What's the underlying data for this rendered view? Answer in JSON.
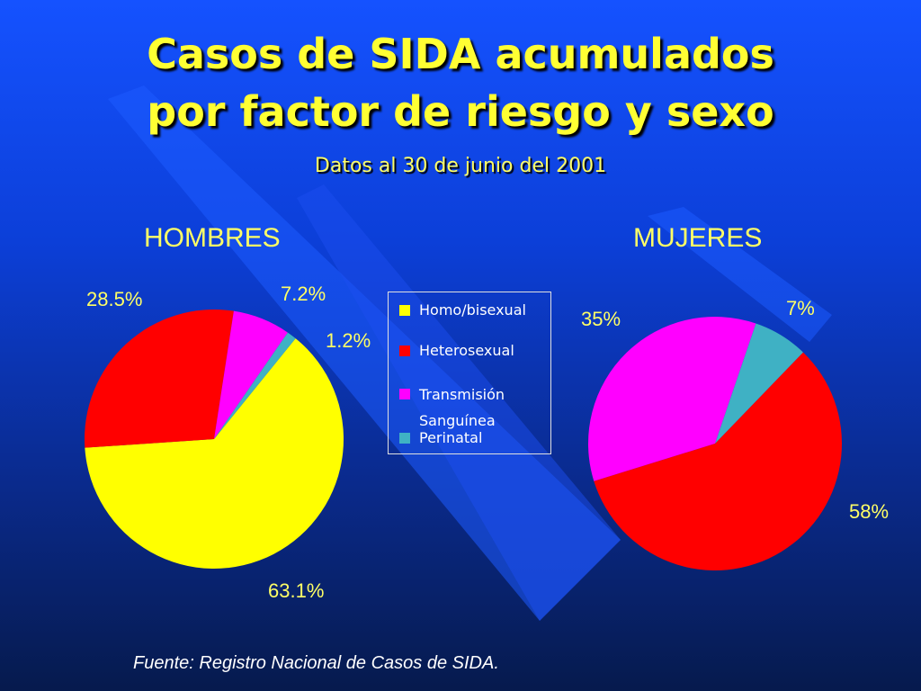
{
  "title_line1": "Casos de SIDA acumulados",
  "title_line2": "por factor de riesgo y sexo",
  "subtitle": "Datos al 30 de junio del 2001",
  "source": "Fuente: Registro Nacional de Casos de SIDA.",
  "colors": {
    "homo": "#ffff00",
    "hetero": "#ff0000",
    "transmision": "#ff00ff",
    "perinatal": "#3fb1c4"
  },
  "chart_data": [
    {
      "type": "pie",
      "title": "HOMBRES",
      "categories": [
        "Homo/bisexual",
        "Heterosexual",
        "Transmisión Sanguínea",
        "Perinatal"
      ],
      "values": [
        63.1,
        28.5,
        7.2,
        1.2
      ],
      "labels": [
        "63.1%",
        "28.5%",
        "7.2%",
        "1.2%"
      ]
    },
    {
      "type": "pie",
      "title": "MUJERES",
      "categories": [
        "Heterosexual",
        "Transmisión Sanguínea",
        "Perinatal"
      ],
      "values": [
        58,
        35,
        7
      ],
      "labels": [
        "58%",
        "35%",
        "7%"
      ]
    }
  ],
  "legend": [
    "Homo/bisexual",
    "Heterosexual",
    "Transmisión Sanguínea",
    "Perinatal"
  ]
}
